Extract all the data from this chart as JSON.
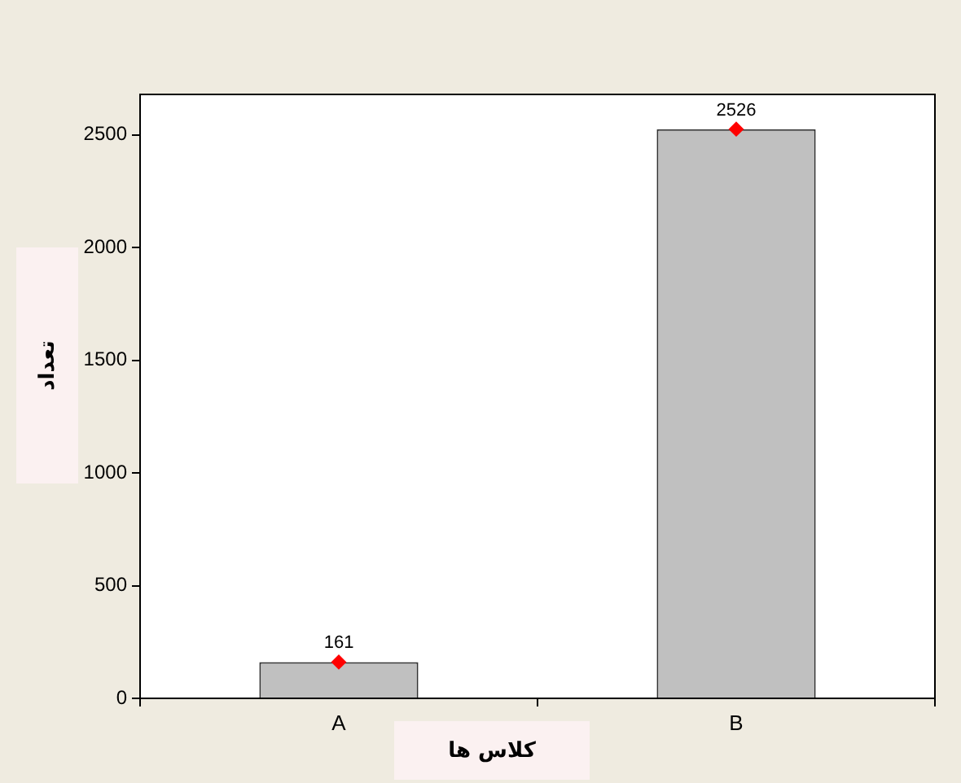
{
  "chart_data": {
    "type": "bar",
    "xlabel": "کلاس ها",
    "ylabel": "تعداد",
    "categories": [
      "A",
      "B"
    ],
    "series": [
      {
        "color": "#c0c0c0",
        "values": [
          161,
          2526
        ]
      },
      {
        "type": "scatter",
        "color": "#ff0000",
        "values": [
          161,
          2526
        ],
        "value_labels": [
          "161",
          "2526"
        ]
      }
    ],
    "marker": "diamond",
    "grid": false,
    "legend": false,
    "ylim": [
      0,
      2680
    ],
    "yticks": [
      0,
      500,
      1000,
      1500,
      2000,
      2500
    ]
  }
}
